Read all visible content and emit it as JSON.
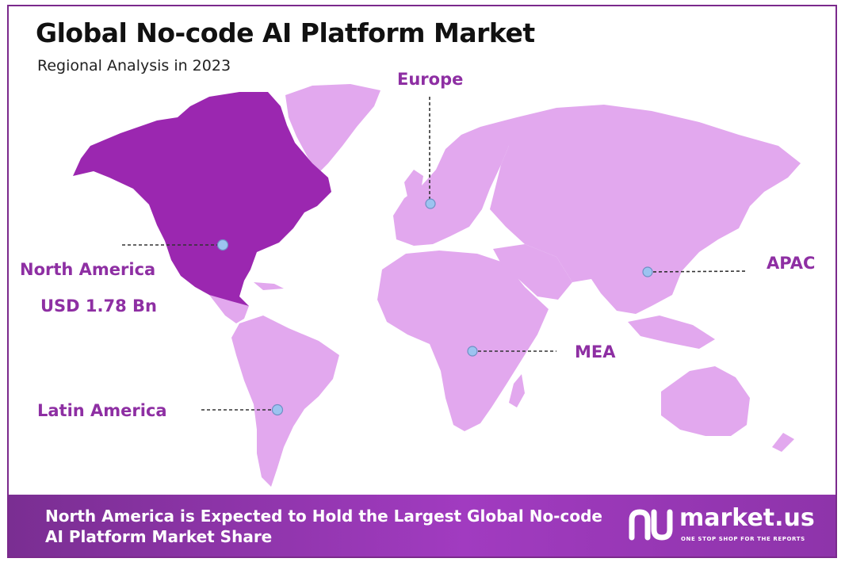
{
  "title": "Global No-code AI Platform Market",
  "subtitle": "Regional Analysis in 2023",
  "colors": {
    "highlight_region": "#9b27b0",
    "other_regions": "#e2a8ee",
    "label_text": "#8e2fa3",
    "marker": "#9cc3f0",
    "banner": "#8e34aa"
  },
  "regions": {
    "europe": {
      "label": "Europe"
    },
    "north_america": {
      "label": "North America",
      "value": "USD 1.78 Bn",
      "highlighted": true
    },
    "apac": {
      "label": "APAC"
    },
    "mea": {
      "label": "MEA"
    },
    "latin_america": {
      "label": "Latin America"
    }
  },
  "banner": {
    "text": "North America is Expected to Hold the Largest Global No-code AI Platform Market Share"
  },
  "logo": {
    "name": "market.us",
    "tagline": "ONE STOP SHOP FOR THE REPORTS",
    "icon": "market-us-logo-icon"
  }
}
